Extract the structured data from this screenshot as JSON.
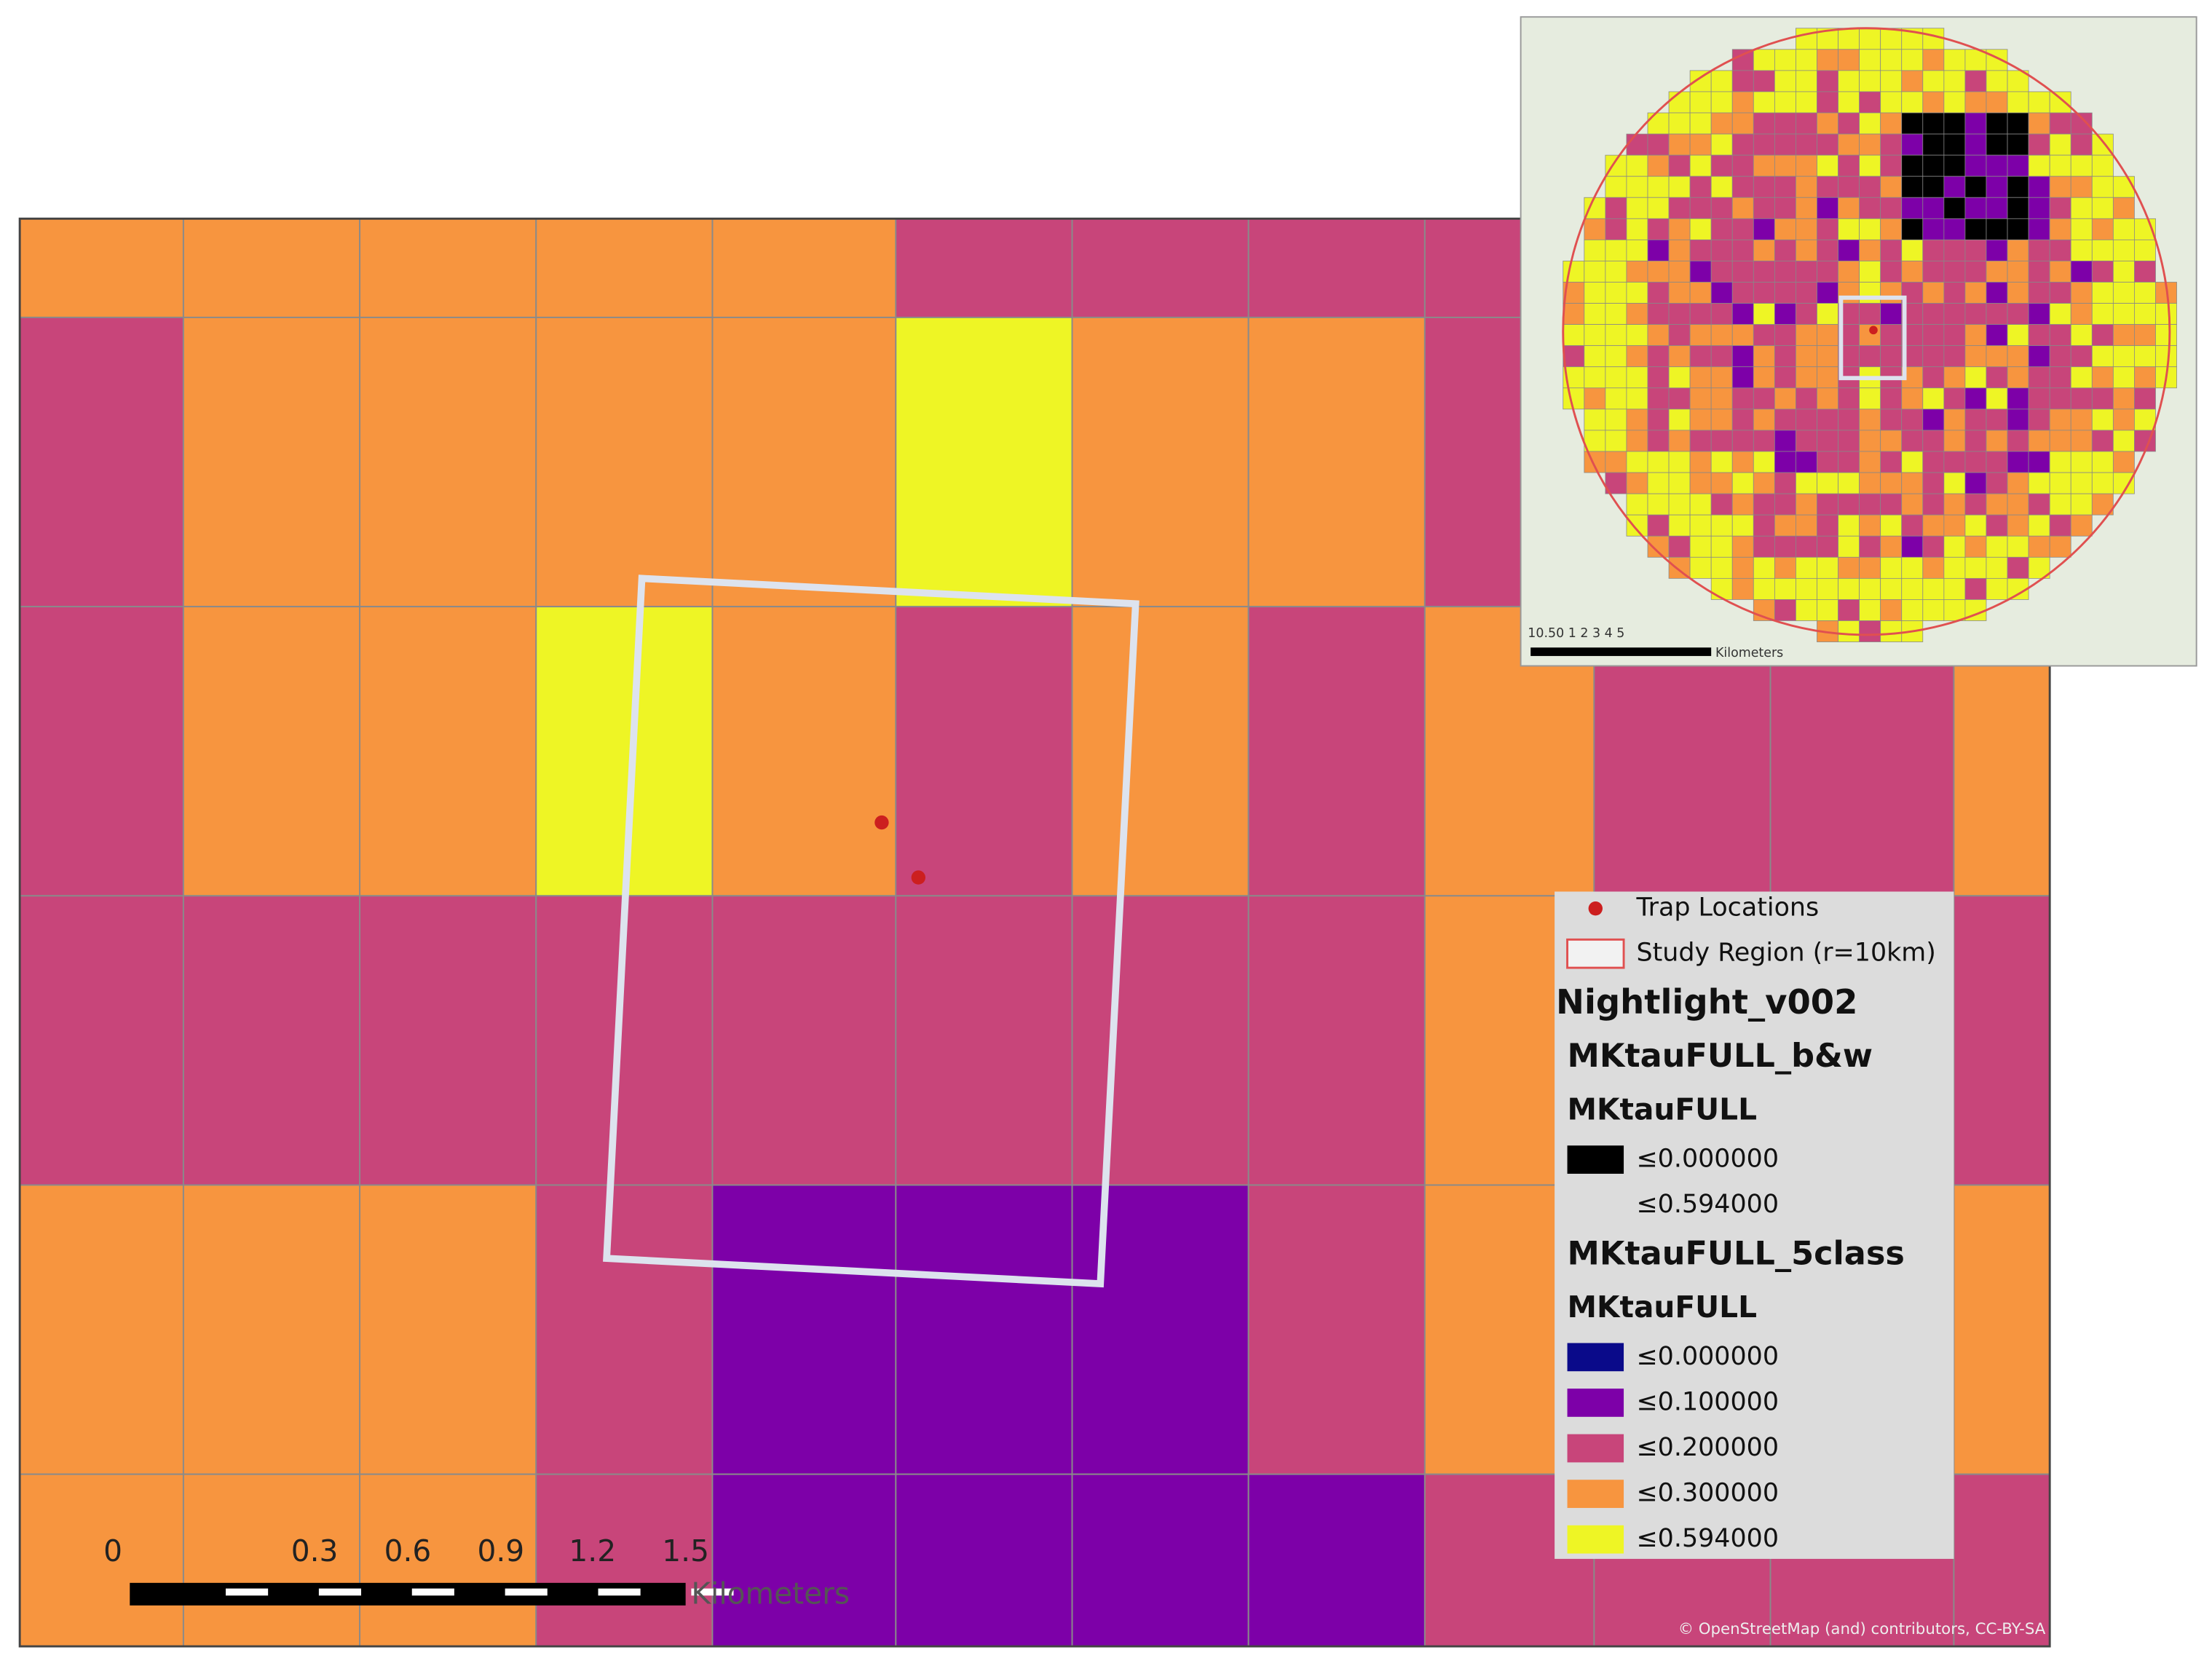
{
  "legend": {
    "trap": {
      "label": "Trap Locations",
      "color": "#cc1f1f"
    },
    "region": {
      "label": "Study Region (r=10km)",
      "color": "#e05050"
    },
    "layer": "Nightlight_v002",
    "bw": {
      "title": "MKtauFULL_b&w",
      "field": "MKtauFULL",
      "classes": [
        {
          "label": "≤0.000000",
          "color": "#000000"
        },
        {
          "label": "≤0.594000"
        }
      ]
    },
    "five": {
      "title": "MKtauFULL_5class",
      "field": "MKtauFULL",
      "classes": [
        {
          "label": "≤0.000000",
          "color": "#0a0a8a"
        },
        {
          "label": "≤0.100000",
          "color": "#7d00a8"
        },
        {
          "label": "≤0.200000",
          "color": "#c8457a"
        },
        {
          "label": "≤0.300000",
          "color": "#f7953f"
        },
        {
          "label": "≤0.594000",
          "color": "#eef525"
        }
      ]
    }
  },
  "scale_bar": {
    "labels": [
      "0",
      "0.3",
      "0.6",
      "0.9",
      "1.2",
      "1.5"
    ],
    "unit": "Kilometers"
  },
  "inset": {
    "scale_labels": "10.50   1     2     3     4     5",
    "unit": "Kilometers"
  },
  "attribution": "© OpenStreetMap (and) contributors, CC-BY-SA"
}
